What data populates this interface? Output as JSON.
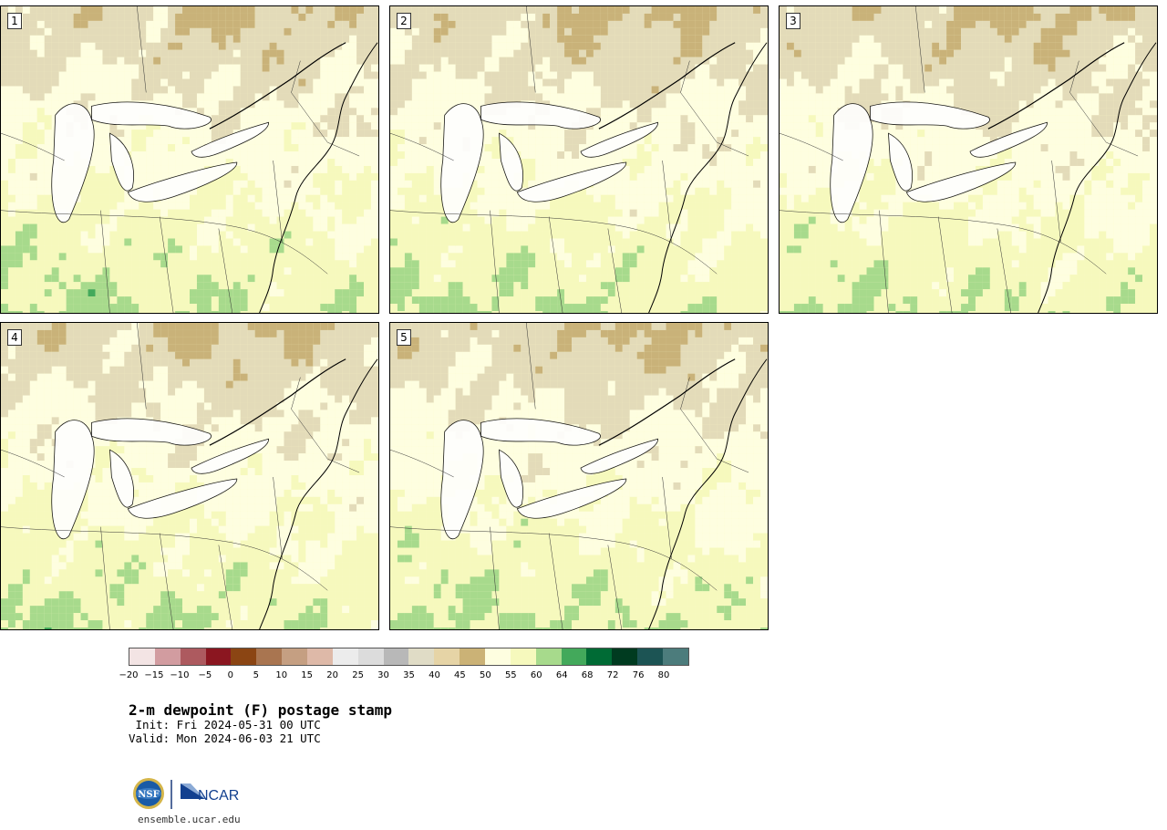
{
  "panels": [
    {
      "label": "1",
      "moist": 0.62
    },
    {
      "label": "2",
      "moist": 0.55
    },
    {
      "label": "3",
      "moist": 0.5
    },
    {
      "label": "4",
      "moist": 0.58
    },
    {
      "label": "5",
      "moist": 0.6
    }
  ],
  "colorbar": {
    "colors": [
      "#f3e4e4",
      "#d29ca0",
      "#ad5a5f",
      "#8b1620",
      "#8b4513",
      "#a97550",
      "#c59f82",
      "#deb9a8",
      "#ececec",
      "#dcdcdc",
      "#b8b8b8",
      "#e0dcc6",
      "#e6d4a6",
      "#cbb276",
      "#fefee0",
      "#f6f9bd",
      "#a7da8c",
      "#43a95b",
      "#006b35",
      "#003b20",
      "#1c5454",
      "#4c7c7c"
    ],
    "ticks": [
      "−20",
      "−15",
      "−10",
      "−5",
      "0",
      "5",
      "10",
      "15",
      "20",
      "25",
      "30",
      "35",
      "40",
      "45",
      "50",
      "55",
      "60",
      "64",
      "68",
      "72",
      "76",
      "80"
    ]
  },
  "title": "2-m dewpoint (F) postage stamp",
  "init_line": " Init: Fri 2024-05-31 00 UTC",
  "valid_line": "Valid: Mon 2024-06-03 21 UTC",
  "logo": {
    "left_text": "NSF",
    "right_text": "NCAR"
  },
  "website": "ensemble.ucar.edu"
}
